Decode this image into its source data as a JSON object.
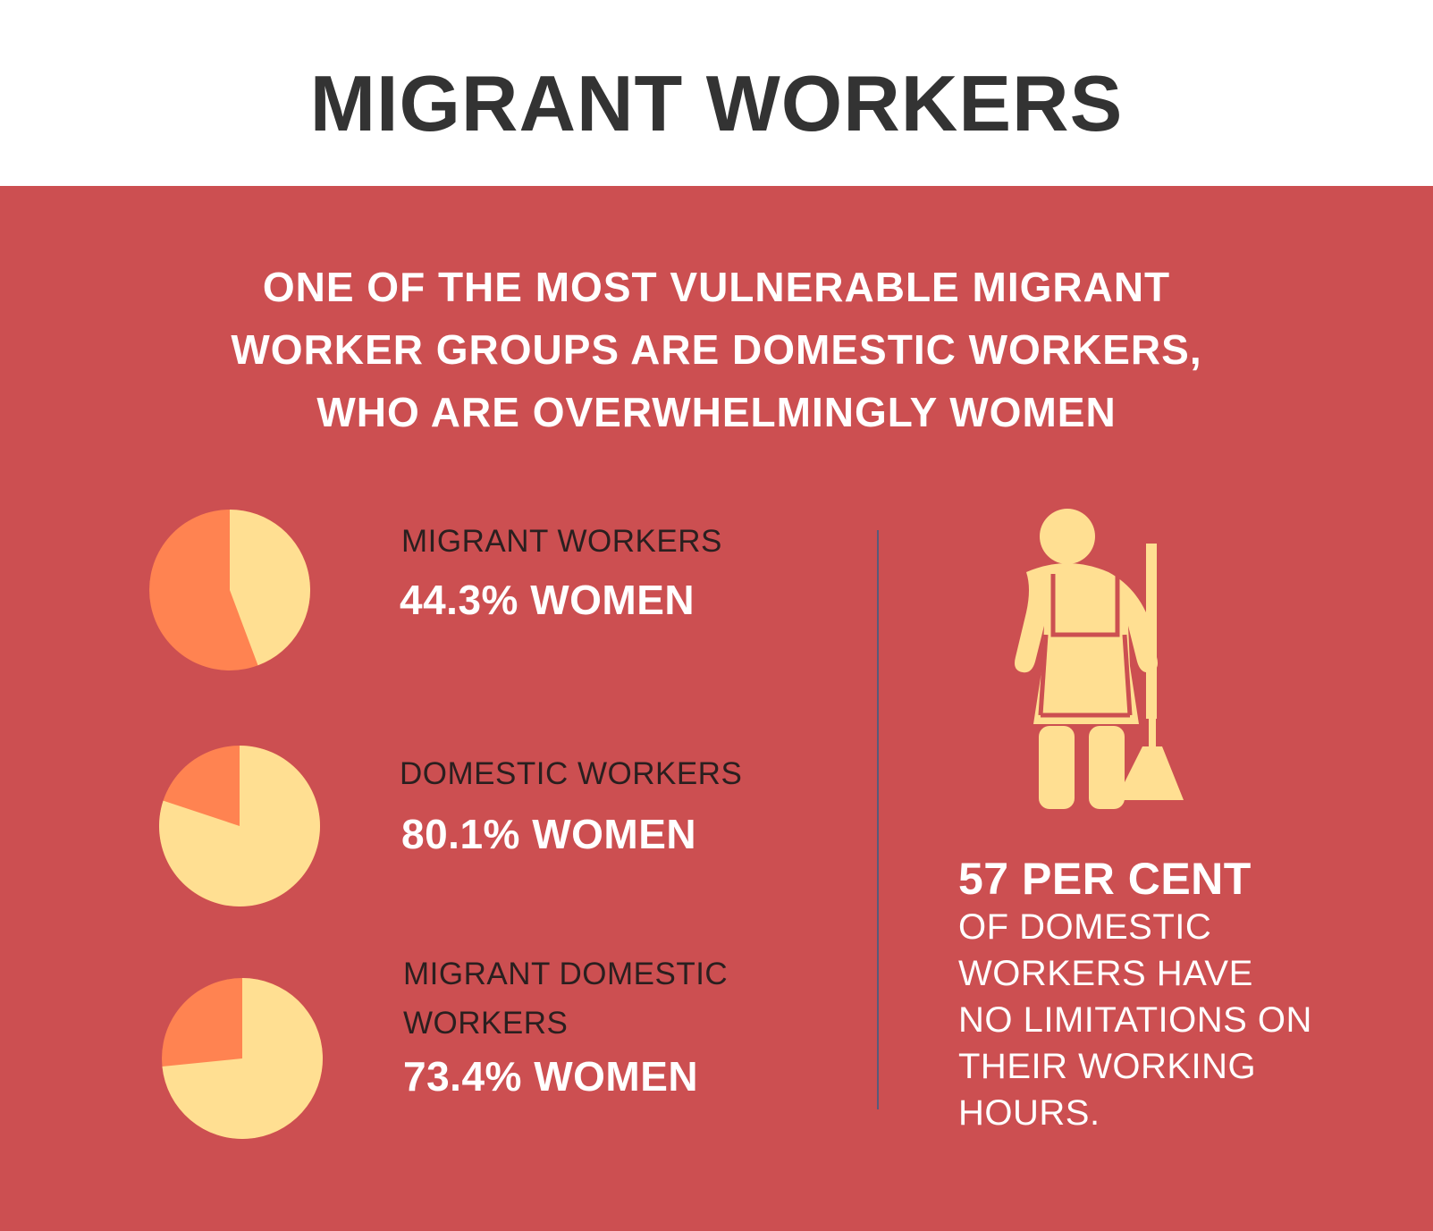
{
  "title": "MIGRANT WORKERS",
  "headline": [
    "ONE OF THE MOST VULNERABLE MIGRANT",
    "WORKER GROUPS ARE DOMESTIC WORKERS,",
    "WHO ARE OVERWHELMINGLY WOMEN"
  ],
  "colors": {
    "panel": "#cc4f51",
    "women": "#ffdf92",
    "men": "#ff8351",
    "divider": "#5a5a7a"
  },
  "chart_data": [
    {
      "type": "pie",
      "label_lines": [
        "MIGRANT WORKERS"
      ],
      "value_label": "44.3% WOMEN",
      "women_percent": 44.3
    },
    {
      "type": "pie",
      "label_lines": [
        "DOMESTIC WORKERS"
      ],
      "value_label": "80.1% WOMEN",
      "women_percent": 80.1
    },
    {
      "type": "pie",
      "label_lines": [
        "MIGRANT DOMESTIC",
        "WORKERS"
      ],
      "value_label": "73.4% WOMEN",
      "women_percent": 73.4
    }
  ],
  "side_stat": {
    "headline": "57 PER CENT",
    "lines": [
      "OF DOMESTIC",
      "WORKERS HAVE",
      "NO LIMITATIONS ON",
      "THEIR WORKING",
      "HOURS."
    ],
    "icon": "domestic-worker-broom-icon"
  }
}
